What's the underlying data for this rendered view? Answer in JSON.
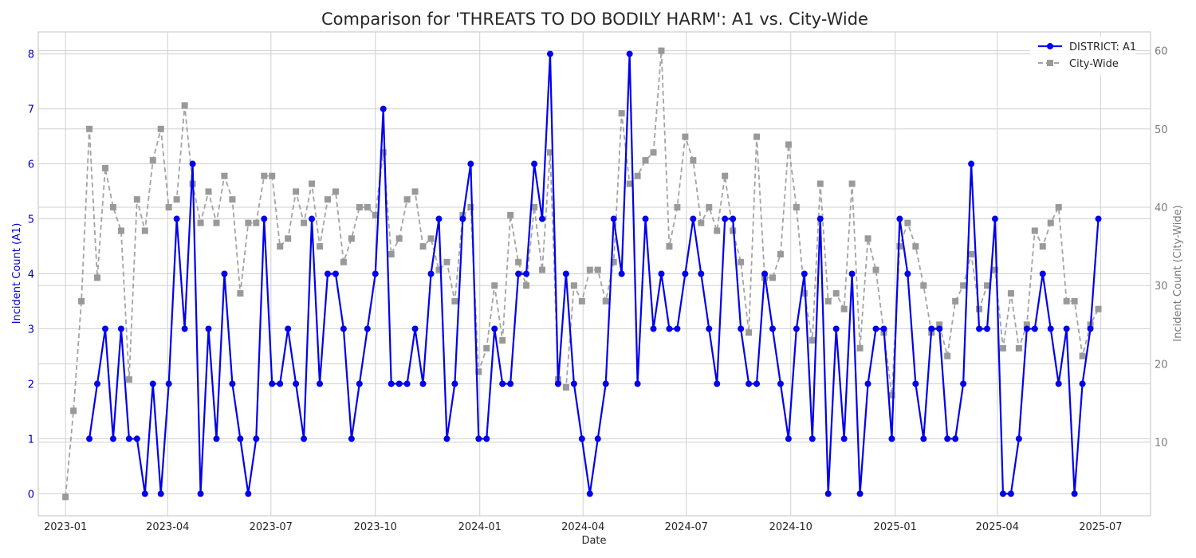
{
  "chart_data": {
    "type": "line",
    "title": "Comparison for 'THREATS TO DO BODILY HARM': A1 vs. City-Wide",
    "xlabel": "Date",
    "ylabel_left": "Incident Count (A1)",
    "ylabel_right": "Incident Count (City-Wide)",
    "ylim_left": [
      -0.4,
      8.4
    ],
    "ylim_right": [
      0.6,
      62.4
    ],
    "xlim": [
      "2022-12-08",
      "2025-08-14"
    ],
    "x_ticks": [
      "2023-01-01",
      "2023-04-01",
      "2023-07-01",
      "2023-10-01",
      "2024-01-01",
      "2024-04-01",
      "2024-07-01",
      "2024-10-01",
      "2025-01-01",
      "2025-04-01",
      "2025-07-01"
    ],
    "x_tick_labels": [
      "2023-01",
      "2023-04",
      "2023-07",
      "2023-10",
      "2024-01",
      "2024-04",
      "2024-07",
      "2024-10",
      "2025-01",
      "2025-04",
      "2025-07"
    ],
    "y_ticks_left": [
      "0",
      "1",
      "2",
      "3",
      "4",
      "5",
      "6",
      "7",
      "8"
    ],
    "y_ticks_right": [
      "10",
      "20",
      "30",
      "40",
      "50",
      "60"
    ],
    "grid": true,
    "legend_position": "top-right",
    "colors": {
      "district": "#0000ee",
      "citywide": "#999999",
      "grid": "#d0d0d0",
      "left_axis": "#0000cc",
      "right_axis": "#7a7a7a"
    },
    "series": [
      {
        "name": "DISTRICT: A1",
        "x": [
          "2023-01-22",
          "2023-01-29",
          "2023-02-05",
          "2023-02-12",
          "2023-02-19",
          "2023-02-26",
          "2023-03-05",
          "2023-03-12",
          "2023-03-19",
          "2023-03-26",
          "2023-04-02",
          "2023-04-09",
          "2023-04-16",
          "2023-04-23",
          "2023-04-30",
          "2023-05-07",
          "2023-05-14",
          "2023-05-21",
          "2023-05-28",
          "2023-06-04",
          "2023-06-11",
          "2023-06-18",
          "2023-06-25",
          "2023-07-02",
          "2023-07-09",
          "2023-07-16",
          "2023-07-23",
          "2023-07-30",
          "2023-08-06",
          "2023-08-13",
          "2023-08-20",
          "2023-08-27",
          "2023-09-03",
          "2023-09-10",
          "2023-09-17",
          "2023-09-24",
          "2023-10-01",
          "2023-10-08",
          "2023-10-15",
          "2023-10-22",
          "2023-10-29",
          "2023-11-05",
          "2023-11-12",
          "2023-11-19",
          "2023-11-26",
          "2023-12-03",
          "2023-12-10",
          "2023-12-17",
          "2023-12-24",
          "2023-12-31",
          "2024-01-07",
          "2024-01-14",
          "2024-01-21",
          "2024-01-28",
          "2024-02-04",
          "2024-02-11",
          "2024-02-18",
          "2024-02-25",
          "2024-03-03",
          "2024-03-10",
          "2024-03-17",
          "2024-03-24",
          "2024-03-31",
          "2024-04-07",
          "2024-04-14",
          "2024-04-21",
          "2024-04-28",
          "2024-05-05",
          "2024-05-12",
          "2024-05-19",
          "2024-05-26",
          "2024-06-02",
          "2024-06-09",
          "2024-06-16",
          "2024-06-23",
          "2024-06-30",
          "2024-07-07",
          "2024-07-14",
          "2024-07-21",
          "2024-07-28",
          "2024-08-04",
          "2024-08-11",
          "2024-08-18",
          "2024-08-25",
          "2024-09-01",
          "2024-09-08",
          "2024-09-15",
          "2024-09-22",
          "2024-09-29",
          "2024-10-06",
          "2024-10-13",
          "2024-10-20",
          "2024-10-27",
          "2024-11-03",
          "2024-11-10",
          "2024-11-17",
          "2024-11-24",
          "2024-12-01",
          "2024-12-08",
          "2024-12-15",
          "2024-12-22",
          "2024-12-29",
          "2025-01-05",
          "2025-01-12",
          "2025-01-19",
          "2025-01-26",
          "2025-02-02",
          "2025-02-09",
          "2025-02-16",
          "2025-02-23",
          "2025-03-02",
          "2025-03-09",
          "2025-03-16",
          "2025-03-23",
          "2025-03-30",
          "2025-04-06",
          "2025-04-13",
          "2025-04-20",
          "2025-04-27",
          "2025-05-04",
          "2025-05-11",
          "2025-05-18",
          "2025-05-25",
          "2025-06-01",
          "2025-06-08",
          "2025-06-15",
          "2025-06-22",
          "2025-06-29"
        ],
        "y": [
          1,
          2,
          3,
          1,
          3,
          1,
          1,
          0,
          2,
          0,
          2,
          5,
          3,
          6,
          0,
          3,
          1,
          4,
          2,
          1,
          0,
          1,
          5,
          2,
          2,
          3,
          2,
          1,
          5,
          2,
          4,
          4,
          3,
          1,
          2,
          3,
          4,
          7,
          2,
          2,
          2,
          3,
          2,
          4,
          5,
          1,
          2,
          5,
          6,
          1,
          1,
          3,
          2,
          2,
          4,
          4,
          6,
          5,
          8,
          2,
          4,
          2,
          1,
          0,
          1,
          2,
          5,
          4,
          8,
          2,
          5,
          3,
          4,
          3,
          3,
          4,
          5,
          4,
          3,
          2,
          5,
          5,
          3,
          2,
          2,
          4,
          3,
          2,
          1,
          3,
          4,
          1,
          5,
          0,
          3,
          1,
          4,
          0,
          2,
          3,
          3,
          1,
          5,
          4,
          2,
          1,
          3,
          3,
          1,
          1,
          2,
          6,
          3,
          3,
          5,
          0,
          0,
          1,
          3,
          3,
          4,
          3,
          2,
          3,
          0,
          2,
          3,
          5
        ]
      },
      {
        "name": "City-Wide",
        "x": [
          "2023-01-01",
          "2023-01-08",
          "2023-01-15",
          "2023-01-22",
          "2023-01-29",
          "2023-02-05",
          "2023-02-12",
          "2023-02-19",
          "2023-02-26",
          "2023-03-05",
          "2023-03-12",
          "2023-03-19",
          "2023-03-26",
          "2023-04-02",
          "2023-04-09",
          "2023-04-16",
          "2023-04-23",
          "2023-04-30",
          "2023-05-07",
          "2023-05-14",
          "2023-05-21",
          "2023-05-28",
          "2023-06-04",
          "2023-06-11",
          "2023-06-18",
          "2023-06-25",
          "2023-07-02",
          "2023-07-09",
          "2023-07-16",
          "2023-07-23",
          "2023-07-30",
          "2023-08-06",
          "2023-08-13",
          "2023-08-20",
          "2023-08-27",
          "2023-09-03",
          "2023-09-10",
          "2023-09-17",
          "2023-09-24",
          "2023-10-01",
          "2023-10-08",
          "2023-10-15",
          "2023-10-22",
          "2023-10-29",
          "2023-11-05",
          "2023-11-12",
          "2023-11-19",
          "2023-11-26",
          "2023-12-03",
          "2023-12-10",
          "2023-12-17",
          "2023-12-24",
          "2023-12-31",
          "2024-01-07",
          "2024-01-14",
          "2024-01-21",
          "2024-01-28",
          "2024-02-04",
          "2024-02-11",
          "2024-02-18",
          "2024-02-25",
          "2024-03-03",
          "2024-03-10",
          "2024-03-17",
          "2024-03-24",
          "2024-03-31",
          "2024-04-07",
          "2024-04-14",
          "2024-04-21",
          "2024-04-28",
          "2024-05-05",
          "2024-05-12",
          "2024-05-19",
          "2024-05-26",
          "2024-06-02",
          "2024-06-09",
          "2024-06-16",
          "2024-06-23",
          "2024-06-30",
          "2024-07-07",
          "2024-07-14",
          "2024-07-21",
          "2024-07-28",
          "2024-08-04",
          "2024-08-11",
          "2024-08-18",
          "2024-08-25",
          "2024-09-01",
          "2024-09-08",
          "2024-09-15",
          "2024-09-22",
          "2024-09-29",
          "2024-10-06",
          "2024-10-13",
          "2024-10-20",
          "2024-10-27",
          "2024-11-03",
          "2024-11-10",
          "2024-11-17",
          "2024-11-24",
          "2024-12-01",
          "2024-12-08",
          "2024-12-15",
          "2024-12-22",
          "2024-12-29",
          "2025-01-05",
          "2025-01-12",
          "2025-01-19",
          "2025-01-26",
          "2025-02-02",
          "2025-02-09",
          "2025-02-16",
          "2025-02-23",
          "2025-03-02",
          "2025-03-09",
          "2025-03-16",
          "2025-03-23",
          "2025-03-30",
          "2025-04-06",
          "2025-04-13",
          "2025-04-20",
          "2025-04-27",
          "2025-05-04",
          "2025-05-11",
          "2025-05-18",
          "2025-05-25",
          "2025-06-01",
          "2025-06-08",
          "2025-06-15",
          "2025-06-22",
          "2025-06-29"
        ],
        "y": [
          3,
          14,
          28,
          50,
          31,
          45,
          40,
          37,
          18,
          41,
          37,
          46,
          50,
          40,
          41,
          53,
          43,
          38,
          42,
          38,
          44,
          41,
          29,
          38,
          38,
          44,
          44,
          35,
          36,
          42,
          38,
          43,
          35,
          41,
          42,
          33,
          36,
          40,
          40,
          39,
          47,
          34,
          36,
          41,
          42,
          35,
          36,
          32,
          33,
          28,
          39,
          40,
          19,
          22,
          30,
          23,
          39,
          33,
          30,
          40,
          32,
          47,
          18,
          17,
          30,
          28,
          32,
          32,
          28,
          33,
          52,
          43,
          44,
          46,
          47,
          60,
          35,
          40,
          49,
          46,
          38,
          40,
          37,
          44,
          37,
          33,
          24,
          49,
          31,
          31,
          34,
          48,
          40,
          29,
          23,
          43,
          28,
          29,
          27,
          43,
          22,
          36,
          32,
          24,
          16,
          35,
          38,
          35,
          30,
          24,
          25,
          21,
          28,
          30,
          34,
          27,
          30,
          32,
          22,
          29,
          22,
          25,
          37,
          35,
          38,
          40,
          28,
          28,
          21,
          25,
          27
        ]
      }
    ]
  }
}
